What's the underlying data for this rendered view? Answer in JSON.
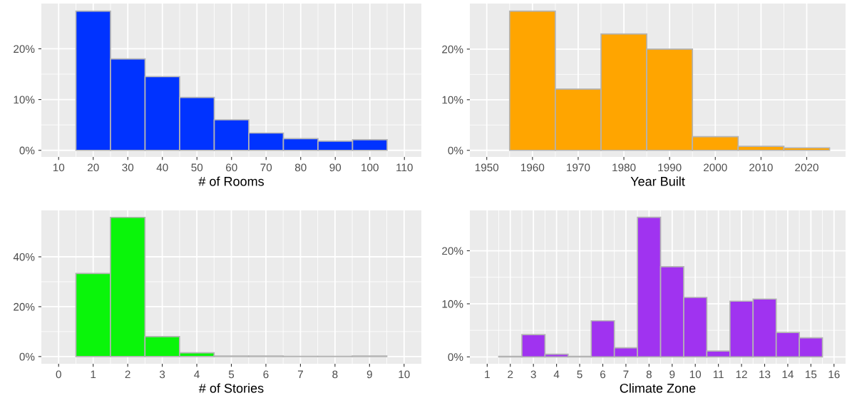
{
  "chart_data": [
    {
      "type": "histogram",
      "xlabel": "# of Rooms",
      "color": "#0033ff",
      "bins": [
        15,
        25,
        35,
        45,
        55,
        65,
        75,
        85,
        95,
        105
      ],
      "values": [
        27.4,
        18.0,
        14.5,
        10.4,
        6.0,
        3.4,
        2.3,
        1.8,
        2.1
      ],
      "xlim": [
        5,
        114.9
      ],
      "ylim": [
        -1.3,
        28.9
      ],
      "xticks": [
        10,
        20,
        30,
        40,
        50,
        60,
        70,
        80,
        90,
        100,
        110
      ],
      "yticks": [
        {
          "value": 0,
          "label": "0%"
        },
        {
          "value": 10,
          "label": "10%"
        },
        {
          "value": 20,
          "label": "20%"
        }
      ],
      "grid": true
    },
    {
      "type": "histogram",
      "xlabel": "Year Built",
      "color": "#ffa500",
      "bins": [
        1955,
        1965,
        1975,
        1985,
        1995,
        2005,
        2015,
        2025
      ],
      "values": [
        27.5,
        12.1,
        23.0,
        20.0,
        2.7,
        0.8,
        0.5
      ],
      "xlim": [
        1946.3,
        2028.5
      ],
      "ylim": [
        -1.3,
        29
      ],
      "xticks": [
        1950,
        1960,
        1970,
        1980,
        1990,
        2000,
        2010,
        2020
      ],
      "yticks": [
        {
          "value": 0,
          "label": "0%"
        },
        {
          "value": 10,
          "label": "10%"
        },
        {
          "value": 20,
          "label": "20%"
        }
      ],
      "grid": true
    },
    {
      "type": "histogram",
      "xlabel": "# of Stories",
      "color": "#0af50a",
      "bins": [
        0.5,
        1.5,
        2.5,
        3.5,
        4.5,
        5.5,
        6.5,
        7.5,
        8.5,
        9.5
      ],
      "values": [
        33.3,
        55.8,
        8.0,
        1.5,
        0.2,
        0.2,
        0.1,
        0.1,
        0.2
      ],
      "xlim": [
        -0.5,
        10.5
      ],
      "ylim": [
        -2.9,
        58.6
      ],
      "xticks": [
        0,
        1,
        2,
        3,
        4,
        5,
        6,
        7,
        8,
        9,
        10
      ],
      "yticks": [
        {
          "value": 0,
          "label": "0%"
        },
        {
          "value": 20,
          "label": "20%"
        },
        {
          "value": 40,
          "label": "40%"
        }
      ],
      "grid": true
    },
    {
      "type": "histogram",
      "xlabel": "Climate Zone",
      "color": "#a033f0",
      "bins": [
        1.5,
        2.5,
        3.5,
        4.5,
        5.5,
        6.5,
        7.5,
        8.5,
        9.5,
        10.5,
        11.5,
        12.5,
        13.5,
        14.5,
        15.5
      ],
      "values": [
        0.1,
        4.2,
        0.5,
        0.1,
        6.8,
        1.7,
        26.3,
        17.0,
        11.2,
        1.1,
        10.5,
        10.9,
        4.6,
        3.6
      ],
      "xlim": [
        0.25,
        16.5
      ],
      "ylim": [
        -1.3,
        27.6
      ],
      "xticks": [
        1,
        2,
        3,
        4,
        5,
        6,
        7,
        8,
        9,
        10,
        11,
        12,
        13,
        14,
        15,
        16
      ],
      "yticks": [
        {
          "value": 0,
          "label": "0%"
        },
        {
          "value": 10,
          "label": "10%"
        },
        {
          "value": 20,
          "label": "20%"
        }
      ],
      "grid": true
    }
  ]
}
